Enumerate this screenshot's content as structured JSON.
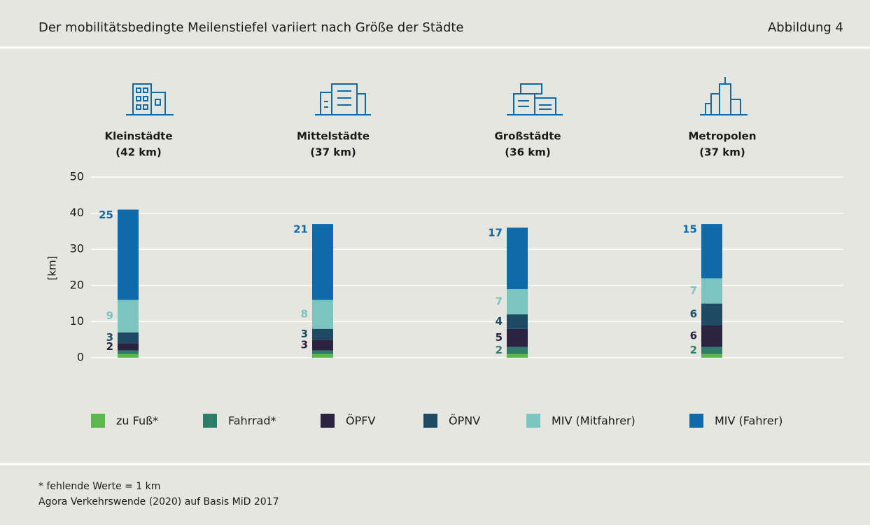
{
  "header": {
    "title": "Der mobilitätsbedingte Meilenstiefel variiert nach Größe der Städte",
    "figure_label": "Abbildung 4"
  },
  "chart_data": {
    "type": "stacked_bar",
    "categories": [
      "Kleinstädte",
      "Mittelstädte",
      "Großstädte",
      "Metropolen"
    ],
    "category_totals": [
      "(42 km)",
      "(37 km)",
      "(36 km)",
      "(37 km)"
    ],
    "ylabel": "[km]",
    "ylim": [
      0,
      50
    ],
    "yticks": [
      0,
      10,
      20,
      30,
      40,
      50
    ],
    "grid": true,
    "series": [
      {
        "name": "zu Fuß*",
        "color": "#5cb84a",
        "values": [
          1,
          1,
          1,
          1
        ],
        "value_labels": [
          null,
          null,
          null,
          null
        ]
      },
      {
        "name": "Fahrrad*",
        "color": "#2e7d6a",
        "values": [
          1,
          1,
          2,
          2
        ],
        "value_labels": [
          null,
          null,
          "2",
          "2"
        ]
      },
      {
        "name": "ÖPFV",
        "color": "#2b2340",
        "values": [
          2,
          3,
          5,
          6
        ],
        "value_labels": [
          "2",
          "3",
          "5",
          "6"
        ]
      },
      {
        "name": "ÖPNV",
        "color": "#1f4a63",
        "values": [
          3,
          3,
          4,
          6
        ],
        "value_labels": [
          "3",
          "3",
          "4",
          "6"
        ]
      },
      {
        "name": "MIV (Mitfahrer)",
        "color": "#7cc4bd",
        "values": [
          9,
          8,
          7,
          7
        ],
        "value_labels": [
          "9",
          "8",
          "7",
          "7"
        ]
      },
      {
        "name": "MIV (Fahrer)",
        "color": "#0f6aaa",
        "values": [
          25,
          21,
          17,
          15
        ],
        "value_labels": [
          "25",
          "21",
          "17",
          "15"
        ]
      }
    ]
  },
  "footer": {
    "note": "* fehlende Werte = 1 km",
    "source": "Agora Verkehrswende (2020) auf Basis MiD 2017"
  }
}
